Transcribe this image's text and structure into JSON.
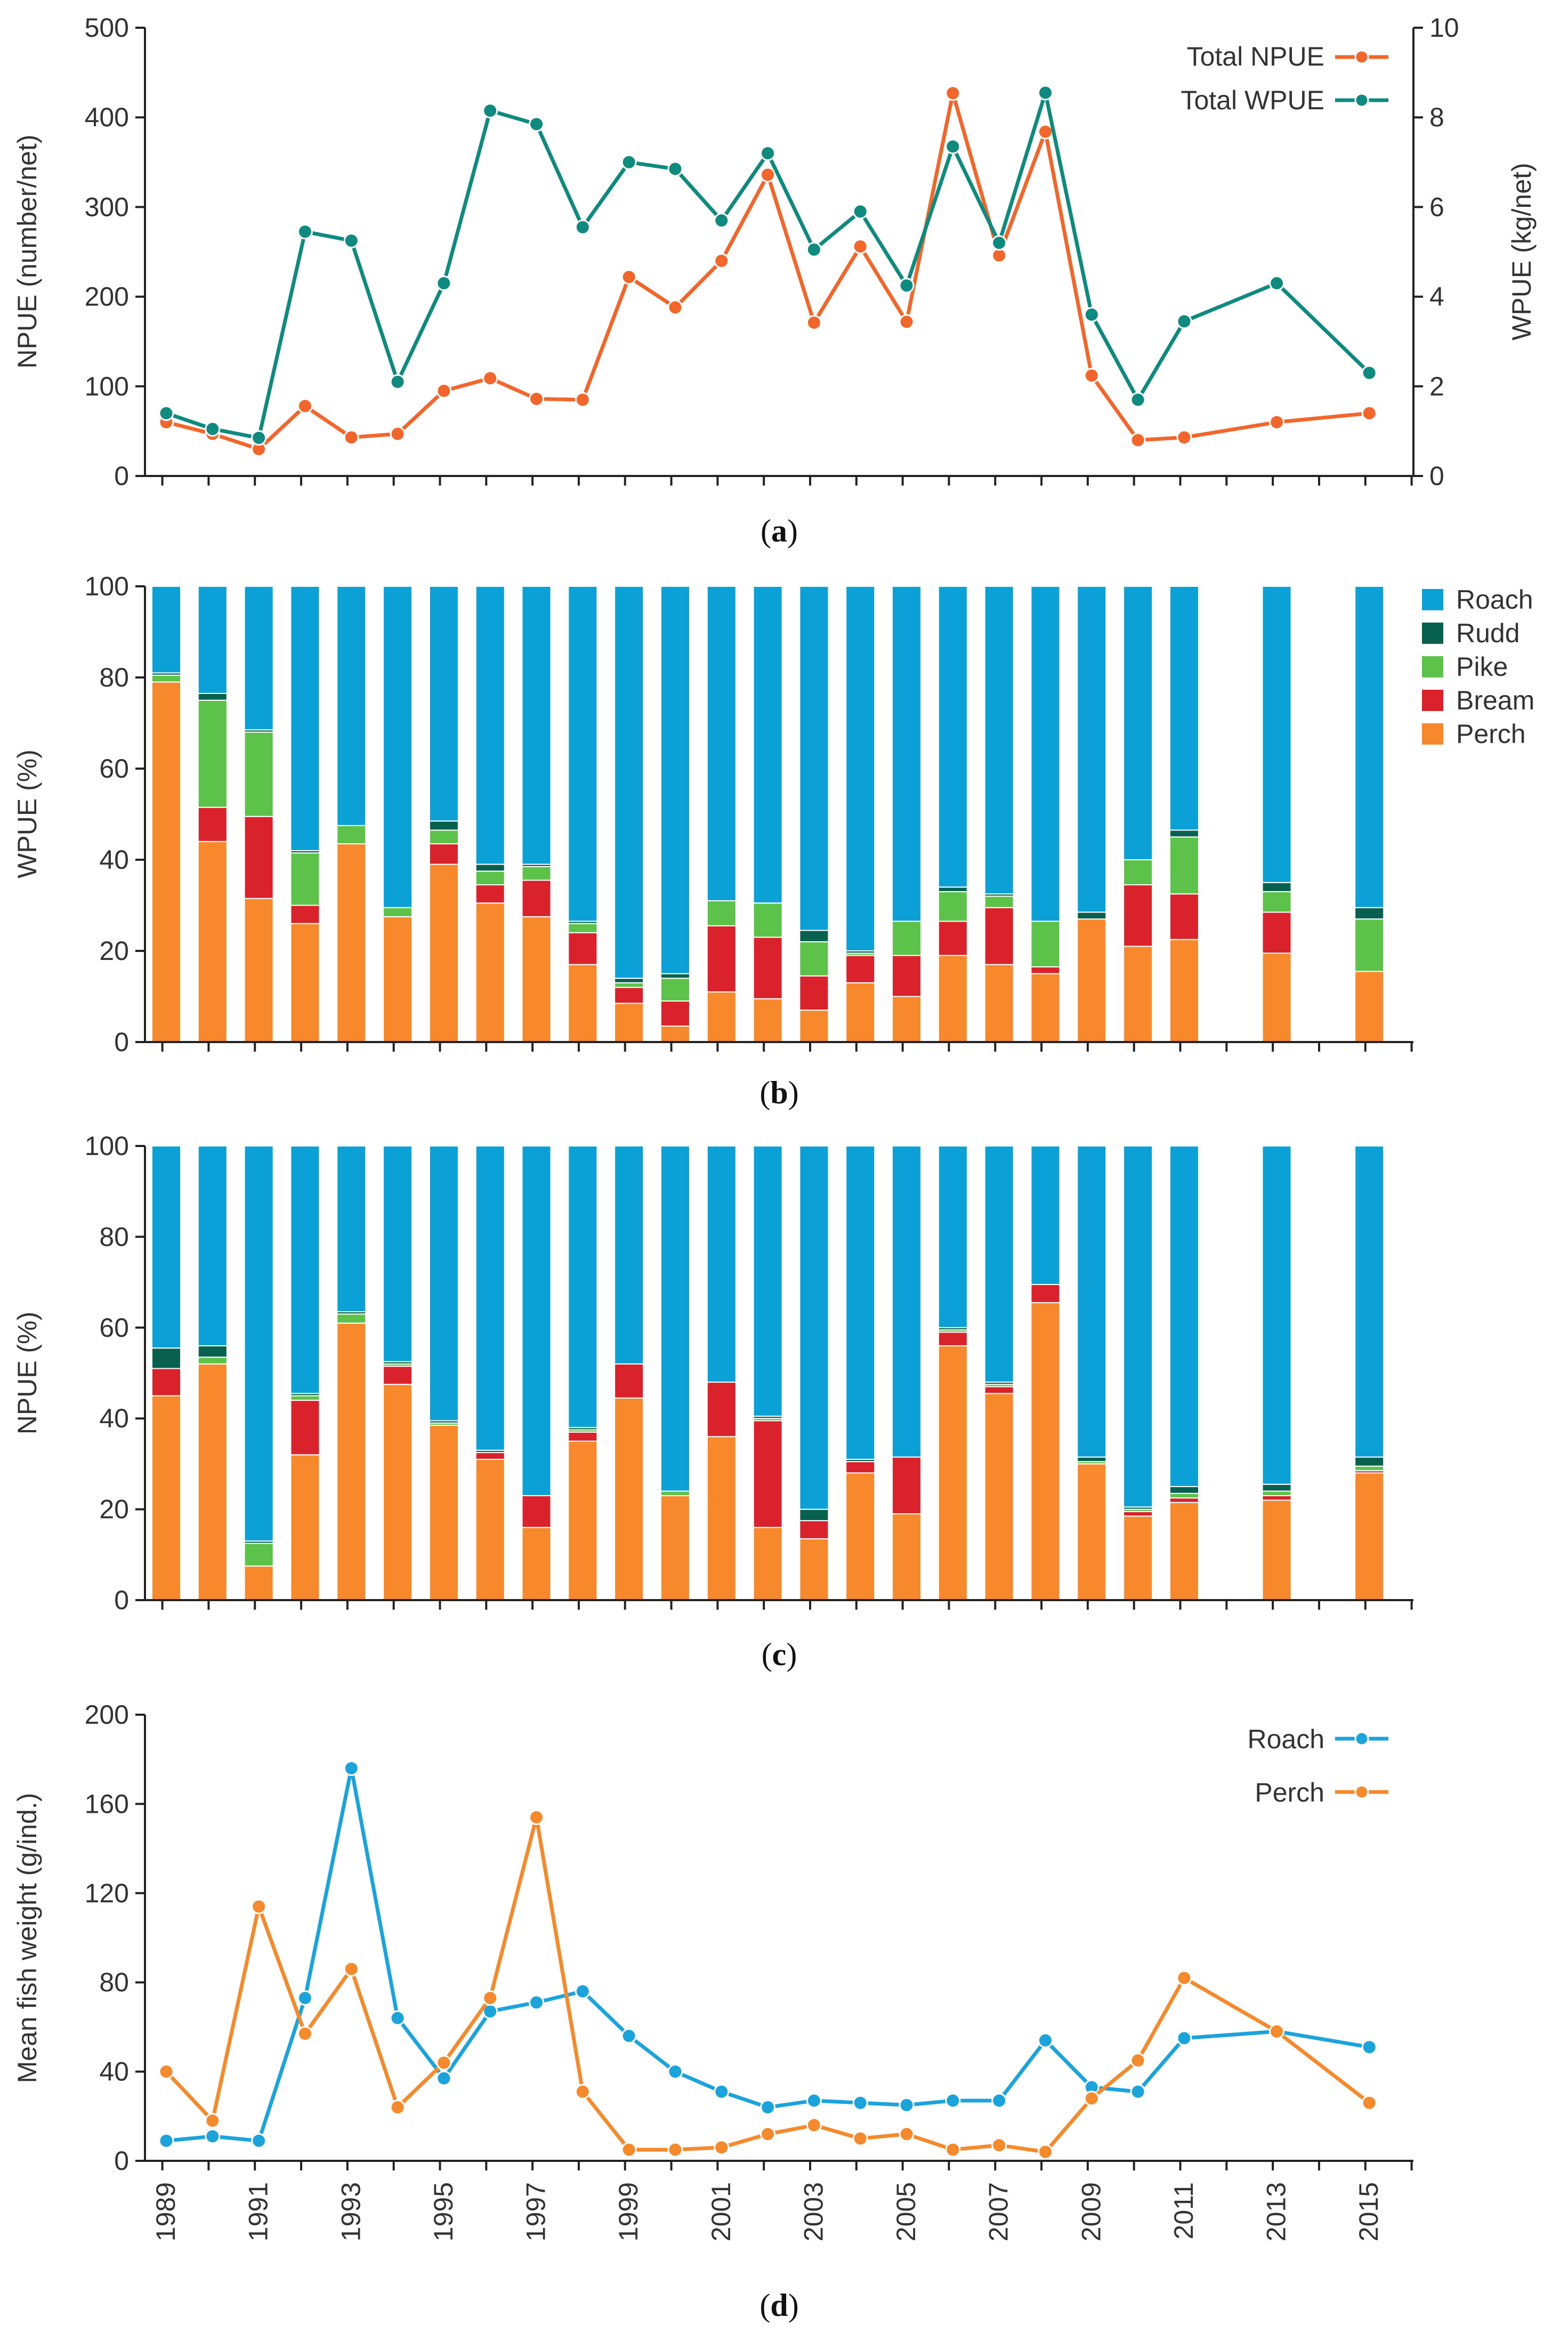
{
  "years": [
    1989,
    1990,
    1991,
    1992,
    1993,
    1994,
    1995,
    1996,
    1997,
    1998,
    1999,
    2000,
    2001,
    2002,
    2003,
    2004,
    2005,
    2006,
    2007,
    2008,
    2009,
    2010,
    2011,
    2013,
    2015
  ],
  "species_colors": {
    "Roach": "#0ba0d6",
    "Rudd": "#08604f",
    "Pike": "#5cc24a",
    "Bream": "#d9222b",
    "Perch": "#f7882b"
  },
  "chart_data": [
    {
      "id": "a",
      "type": "line",
      "panel_label": "a",
      "ylabel": "NPUE (number/net)",
      "y2label": "WPUE (kg/net)",
      "ylim": [
        0,
        500
      ],
      "y2lim": [
        0,
        10
      ],
      "yticks": [
        0,
        100,
        200,
        300,
        400,
        500
      ],
      "y2ticks": [
        0,
        2,
        4,
        6,
        8,
        10
      ],
      "series": [
        {
          "name": "Total NPUE",
          "axis": "left",
          "color": "#f2662b",
          "values": [
            60,
            47,
            30,
            78,
            43,
            47,
            95,
            109,
            86,
            85,
            222,
            188,
            240,
            336,
            171,
            256,
            172,
            427,
            246,
            384,
            112,
            40,
            43,
            60,
            70
          ]
        },
        {
          "name": "Total WPUE",
          "axis": "right",
          "color": "#0f8a7e",
          "values": [
            1.4,
            1.05,
            0.85,
            5.45,
            5.25,
            2.1,
            4.3,
            8.15,
            7.85,
            5.55,
            7.0,
            6.85,
            5.7,
            7.2,
            5.05,
            5.9,
            4.25,
            7.35,
            5.2,
            8.55,
            3.6,
            1.7,
            3.45,
            4.3,
            2.3
          ]
        }
      ]
    },
    {
      "id": "b",
      "type": "bar",
      "stacked": true,
      "panel_label": "b",
      "ylabel": "WPUE (%)",
      "ylim": [
        0,
        100
      ],
      "yticks": [
        0,
        20,
        40,
        60,
        80,
        100
      ],
      "legend": [
        "Roach",
        "Rudd",
        "Pike",
        "Bream",
        "Perch"
      ],
      "series": [
        {
          "name": "Perch",
          "values": [
            79,
            44,
            31.5,
            26,
            43.5,
            27.5,
            39,
            30.5,
            27.5,
            17,
            8.5,
            3.5,
            11,
            9.5,
            7,
            13,
            10,
            19,
            17,
            15,
            27,
            21,
            22.5,
            19.5,
            15.5
          ]
        },
        {
          "name": "Bream",
          "values": [
            0,
            7.5,
            18,
            4,
            0,
            0,
            4.5,
            4,
            8,
            7,
            3.5,
            5.5,
            14.5,
            13.5,
            7.5,
            6,
            9,
            7.5,
            12.5,
            1.5,
            0,
            13.5,
            10,
            9,
            0
          ]
        },
        {
          "name": "Pike",
          "values": [
            1.5,
            23.5,
            18.5,
            11.5,
            4,
            2,
            3,
            3,
            3,
            2,
            1,
            5,
            5.5,
            7.5,
            7.5,
            0.5,
            7.5,
            6.5,
            2.5,
            10,
            0,
            5.5,
            12.5,
            4.5,
            11.5
          ]
        },
        {
          "name": "Rudd",
          "values": [
            0.5,
            1.5,
            0.5,
            0.5,
            0,
            0,
            2,
            1.5,
            0.5,
            0.5,
            1,
            1,
            0,
            0,
            2.5,
            0.5,
            0,
            1,
            0.5,
            0,
            1.5,
            0,
            1.5,
            2,
            2.5
          ]
        },
        {
          "name": "Roach",
          "values": [
            19,
            23.5,
            31.5,
            58,
            52.5,
            70.5,
            51.5,
            61,
            61,
            73.5,
            86,
            85,
            69,
            69.5,
            75.5,
            80,
            73.5,
            66,
            67.5,
            73.5,
            71.5,
            60,
            53.5,
            65,
            70.5
          ]
        }
      ]
    },
    {
      "id": "c",
      "type": "bar",
      "stacked": true,
      "panel_label": "c",
      "ylabel": "NPUE (%)",
      "ylim": [
        0,
        100
      ],
      "yticks": [
        0,
        20,
        40,
        60,
        80,
        100
      ],
      "series": [
        {
          "name": "Perch",
          "values": [
            45,
            52,
            7.5,
            32,
            61,
            47.5,
            38.5,
            31,
            16,
            35,
            44.5,
            23,
            36,
            16,
            13.5,
            28,
            19,
            56,
            45.5,
            65.5,
            30,
            18.5,
            21.5,
            22,
            28
          ]
        },
        {
          "name": "Bream",
          "values": [
            6,
            0,
            0,
            12,
            0,
            4,
            0,
            1.5,
            7,
            2,
            7.5,
            0,
            12,
            23.5,
            4,
            2.5,
            12.5,
            3,
            1.5,
            4,
            0,
            1,
            1,
            1,
            0.5
          ]
        },
        {
          "name": "Pike",
          "values": [
            0,
            1.5,
            5,
            1,
            2,
            0.5,
            0.5,
            0,
            0,
            0.5,
            0,
            1,
            0,
            0.5,
            0,
            0,
            0,
            0.5,
            0.5,
            0,
            0.5,
            0.5,
            1,
            1,
            1
          ]
        },
        {
          "name": "Rudd",
          "values": [
            4.5,
            2.5,
            0.5,
            0.5,
            0.5,
            0.5,
            0.5,
            0.5,
            0,
            0.5,
            0,
            0,
            0,
            0.5,
            2.5,
            0.5,
            0,
            0.5,
            0.5,
            0,
            1,
            0.5,
            1.5,
            1.5,
            2
          ]
        },
        {
          "name": "Roach",
          "values": [
            44.5,
            44,
            87,
            54.5,
            36.5,
            47.5,
            60.5,
            67,
            77,
            62,
            48,
            76,
            52,
            59.5,
            80,
            69,
            68.5,
            40,
            52,
            30.5,
            68.5,
            79.5,
            75,
            74.5,
            68.5
          ]
        }
      ]
    },
    {
      "id": "d",
      "type": "line",
      "panel_label": "d",
      "ylabel": "Mean fish weight (g/ind.)",
      "ylim": [
        0,
        200
      ],
      "yticks": [
        0,
        40,
        80,
        120,
        160,
        200
      ],
      "xtick_labels": [
        "1989",
        "1991",
        "1993",
        "1995",
        "1997",
        "1999",
        "2001",
        "2003",
        "2005",
        "2007",
        "2009",
        "2011",
        "2013",
        "2015"
      ],
      "series": [
        {
          "name": "Roach",
          "color": "#1ba3dc",
          "values": [
            9,
            11,
            9,
            73,
            176,
            64,
            37,
            67,
            71,
            76,
            56,
            40,
            31,
            24,
            27,
            26,
            25,
            27,
            27,
            54,
            33,
            31,
            55,
            58,
            51
          ]
        },
        {
          "name": "Perch",
          "color": "#f58a2c",
          "values": [
            40,
            18,
            114,
            57,
            86,
            24,
            44,
            73,
            154,
            31,
            5,
            5,
            6,
            12,
            16,
            10,
            12,
            5,
            7,
            4,
            28,
            45,
            82,
            58,
            26
          ]
        }
      ]
    }
  ]
}
